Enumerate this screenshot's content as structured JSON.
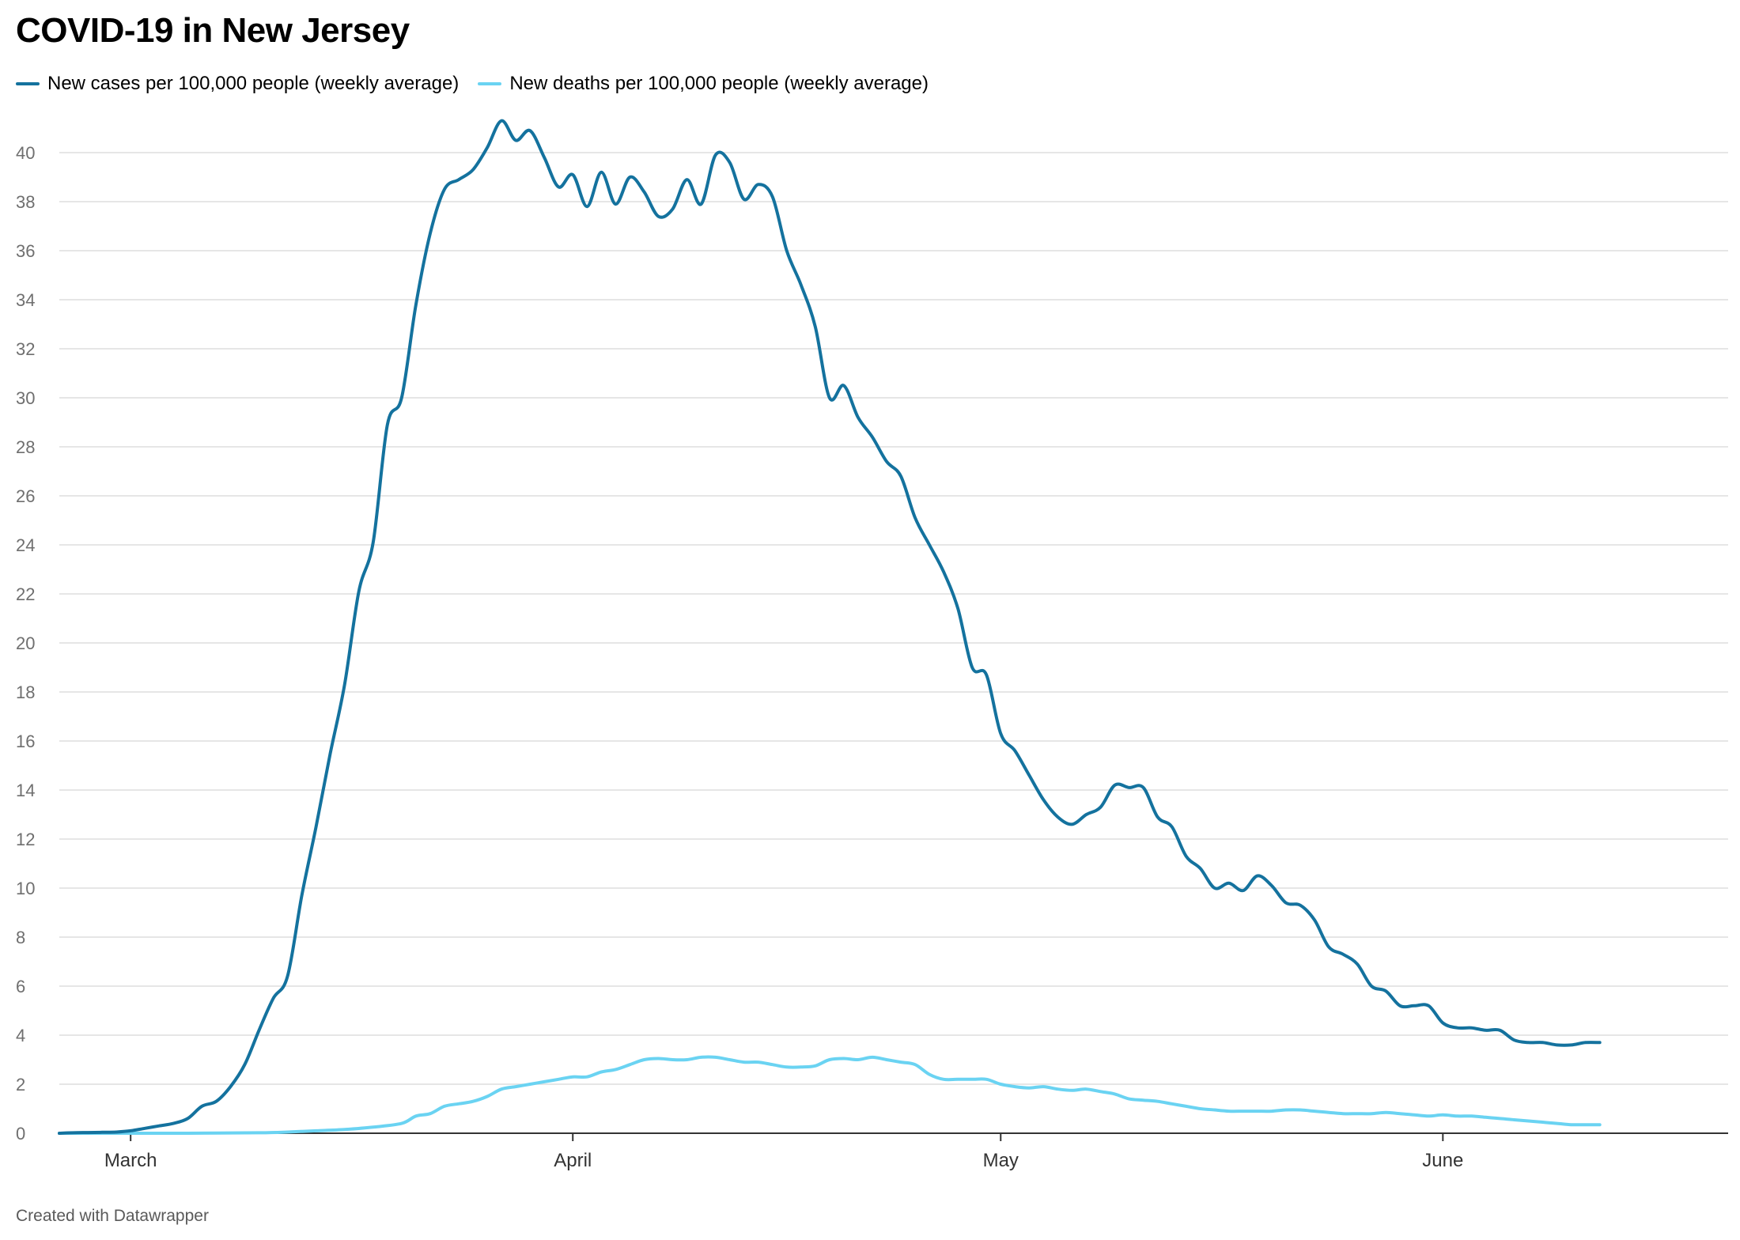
{
  "title": "COVID-19 in New Jersey",
  "footer": "Created with Datawrapper",
  "colors": {
    "cases": "#14729e",
    "deaths": "#6ad3f2",
    "grid": "#dddddd",
    "axis": "#333333"
  },
  "chart_data": {
    "type": "line",
    "title": "COVID-19 in New Jersey",
    "xlabel": "",
    "ylabel": "",
    "ylim": [
      0,
      41
    ],
    "yticks": [
      0,
      2,
      4,
      6,
      8,
      10,
      12,
      14,
      16,
      18,
      20,
      22,
      24,
      26,
      28,
      30,
      32,
      34,
      36,
      38,
      40
    ],
    "x_range": [
      "2020-02-25",
      "2020-06-21"
    ],
    "x_ticks": [
      {
        "date": "2020-03-01",
        "label": "March"
      },
      {
        "date": "2020-04-01",
        "label": "April"
      },
      {
        "date": "2020-05-01",
        "label": "May"
      },
      {
        "date": "2020-06-01",
        "label": "June"
      }
    ],
    "grid": true,
    "legend_position": "top-left",
    "series": [
      {
        "name": "New cases per 100,000 people (weekly average)",
        "color": "#14729e",
        "points": [
          [
            "2020-02-25",
            0
          ],
          [
            "2020-02-26",
            0.02
          ],
          [
            "2020-02-27",
            0.03
          ],
          [
            "2020-02-28",
            0.04
          ],
          [
            "2020-02-29",
            0.05
          ],
          [
            "2020-03-01",
            0.1
          ],
          [
            "2020-03-02",
            0.2
          ],
          [
            "2020-03-03",
            0.3
          ],
          [
            "2020-03-04",
            0.4
          ],
          [
            "2020-03-05",
            0.6
          ],
          [
            "2020-03-06",
            1.1
          ],
          [
            "2020-03-07",
            1.3
          ],
          [
            "2020-03-08",
            1.9
          ],
          [
            "2020-03-09",
            2.8
          ],
          [
            "2020-03-10",
            4.2
          ],
          [
            "2020-03-11",
            5.5
          ],
          [
            "2020-03-12",
            6.4
          ],
          [
            "2020-03-13",
            9.7
          ],
          [
            "2020-03-14",
            12.5
          ],
          [
            "2020-03-15",
            15.5
          ],
          [
            "2020-03-16",
            18.3
          ],
          [
            "2020-03-17",
            22.1
          ],
          [
            "2020-03-18",
            24.1
          ],
          [
            "2020-03-19",
            28.9
          ],
          [
            "2020-03-20",
            30.0
          ],
          [
            "2020-03-21",
            33.8
          ],
          [
            "2020-03-22",
            36.7
          ],
          [
            "2020-03-23",
            38.5
          ],
          [
            "2020-03-24",
            38.9
          ],
          [
            "2020-03-25",
            39.3
          ],
          [
            "2020-03-26",
            40.2
          ],
          [
            "2020-03-27",
            41.3
          ],
          [
            "2020-03-28",
            40.5
          ],
          [
            "2020-03-29",
            40.9
          ],
          [
            "2020-03-30",
            39.8
          ],
          [
            "2020-03-31",
            38.6
          ],
          [
            "2020-04-01",
            39.1
          ],
          [
            "2020-04-02",
            37.8
          ],
          [
            "2020-04-03",
            39.2
          ],
          [
            "2020-04-04",
            37.9
          ],
          [
            "2020-04-05",
            39.0
          ],
          [
            "2020-04-06",
            38.4
          ],
          [
            "2020-04-07",
            37.4
          ],
          [
            "2020-04-08",
            37.7
          ],
          [
            "2020-04-09",
            38.9
          ],
          [
            "2020-04-10",
            37.9
          ],
          [
            "2020-04-11",
            39.9
          ],
          [
            "2020-04-12",
            39.6
          ],
          [
            "2020-04-13",
            38.1
          ],
          [
            "2020-04-14",
            38.7
          ],
          [
            "2020-04-15",
            38.2
          ],
          [
            "2020-04-16",
            36.0
          ],
          [
            "2020-04-17",
            34.6
          ],
          [
            "2020-04-18",
            32.9
          ],
          [
            "2020-04-19",
            30.0
          ],
          [
            "2020-04-20",
            30.5
          ],
          [
            "2020-04-21",
            29.2
          ],
          [
            "2020-04-22",
            28.4
          ],
          [
            "2020-04-23",
            27.4
          ],
          [
            "2020-04-24",
            26.8
          ],
          [
            "2020-04-25",
            25.1
          ],
          [
            "2020-04-26",
            24.0
          ],
          [
            "2020-04-27",
            22.9
          ],
          [
            "2020-04-28",
            21.4
          ],
          [
            "2020-04-29",
            19.0
          ],
          [
            "2020-04-30",
            18.7
          ],
          [
            "2020-05-01",
            16.3
          ],
          [
            "2020-05-02",
            15.6
          ],
          [
            "2020-05-03",
            14.6
          ],
          [
            "2020-05-04",
            13.6
          ],
          [
            "2020-05-05",
            12.9
          ],
          [
            "2020-05-06",
            12.6
          ],
          [
            "2020-05-07",
            13.0
          ],
          [
            "2020-05-08",
            13.3
          ],
          [
            "2020-05-09",
            14.2
          ],
          [
            "2020-05-10",
            14.1
          ],
          [
            "2020-05-11",
            14.1
          ],
          [
            "2020-05-12",
            12.9
          ],
          [
            "2020-05-13",
            12.5
          ],
          [
            "2020-05-14",
            11.3
          ],
          [
            "2020-05-15",
            10.8
          ],
          [
            "2020-05-16",
            10.0
          ],
          [
            "2020-05-17",
            10.2
          ],
          [
            "2020-05-18",
            9.9
          ],
          [
            "2020-05-19",
            10.5
          ],
          [
            "2020-05-20",
            10.1
          ],
          [
            "2020-05-21",
            9.4
          ],
          [
            "2020-05-22",
            9.3
          ],
          [
            "2020-05-23",
            8.7
          ],
          [
            "2020-05-24",
            7.6
          ],
          [
            "2020-05-25",
            7.3
          ],
          [
            "2020-05-26",
            6.9
          ],
          [
            "2020-05-27",
            6.0
          ],
          [
            "2020-05-28",
            5.8
          ],
          [
            "2020-05-29",
            5.2
          ],
          [
            "2020-05-30",
            5.2
          ],
          [
            "2020-05-31",
            5.2
          ],
          [
            "2020-06-01",
            4.5
          ],
          [
            "2020-06-02",
            4.3
          ],
          [
            "2020-06-03",
            4.3
          ],
          [
            "2020-06-04",
            4.2
          ],
          [
            "2020-06-05",
            4.2
          ],
          [
            "2020-06-06",
            3.8
          ],
          [
            "2020-06-07",
            3.7
          ],
          [
            "2020-06-08",
            3.7
          ],
          [
            "2020-06-09",
            3.6
          ],
          [
            "2020-06-10",
            3.6
          ],
          [
            "2020-06-11",
            3.7
          ],
          [
            "2020-06-12",
            3.7
          ]
        ]
      },
      {
        "name": "New deaths per 100,000 people (weekly average)",
        "color": "#6ad3f2",
        "points": [
          [
            "2020-02-25",
            0
          ],
          [
            "2020-03-01",
            0
          ],
          [
            "2020-03-05",
            0
          ],
          [
            "2020-03-10",
            0.02
          ],
          [
            "2020-03-12",
            0.05
          ],
          [
            "2020-03-14",
            0.1
          ],
          [
            "2020-03-16",
            0.15
          ],
          [
            "2020-03-18",
            0.25
          ],
          [
            "2020-03-20",
            0.4
          ],
          [
            "2020-03-21",
            0.7
          ],
          [
            "2020-03-22",
            0.8
          ],
          [
            "2020-03-23",
            1.1
          ],
          [
            "2020-03-24",
            1.2
          ],
          [
            "2020-03-25",
            1.3
          ],
          [
            "2020-03-26",
            1.5
          ],
          [
            "2020-03-27",
            1.8
          ],
          [
            "2020-03-28",
            1.9
          ],
          [
            "2020-03-29",
            2.0
          ],
          [
            "2020-03-30",
            2.1
          ],
          [
            "2020-03-31",
            2.2
          ],
          [
            "2020-04-01",
            2.3
          ],
          [
            "2020-04-02",
            2.3
          ],
          [
            "2020-04-03",
            2.5
          ],
          [
            "2020-04-04",
            2.6
          ],
          [
            "2020-04-05",
            2.8
          ],
          [
            "2020-04-06",
            3.0
          ],
          [
            "2020-04-07",
            3.05
          ],
          [
            "2020-04-08",
            3.0
          ],
          [
            "2020-04-09",
            3.0
          ],
          [
            "2020-04-10",
            3.1
          ],
          [
            "2020-04-11",
            3.1
          ],
          [
            "2020-04-12",
            3.0
          ],
          [
            "2020-04-13",
            2.9
          ],
          [
            "2020-04-14",
            2.9
          ],
          [
            "2020-04-15",
            2.8
          ],
          [
            "2020-04-16",
            2.7
          ],
          [
            "2020-04-17",
            2.7
          ],
          [
            "2020-04-18",
            2.75
          ],
          [
            "2020-04-19",
            3.0
          ],
          [
            "2020-04-20",
            3.05
          ],
          [
            "2020-04-21",
            3.0
          ],
          [
            "2020-04-22",
            3.1
          ],
          [
            "2020-04-23",
            3.0
          ],
          [
            "2020-04-24",
            2.9
          ],
          [
            "2020-04-25",
            2.8
          ],
          [
            "2020-04-26",
            2.4
          ],
          [
            "2020-04-27",
            2.2
          ],
          [
            "2020-04-28",
            2.2
          ],
          [
            "2020-04-29",
            2.2
          ],
          [
            "2020-04-30",
            2.2
          ],
          [
            "2020-05-01",
            2.0
          ],
          [
            "2020-05-02",
            1.9
          ],
          [
            "2020-05-03",
            1.85
          ],
          [
            "2020-05-04",
            1.9
          ],
          [
            "2020-05-05",
            1.8
          ],
          [
            "2020-05-06",
            1.75
          ],
          [
            "2020-05-07",
            1.8
          ],
          [
            "2020-05-08",
            1.7
          ],
          [
            "2020-05-09",
            1.6
          ],
          [
            "2020-05-10",
            1.4
          ],
          [
            "2020-05-11",
            1.35
          ],
          [
            "2020-05-12",
            1.3
          ],
          [
            "2020-05-13",
            1.2
          ],
          [
            "2020-05-14",
            1.1
          ],
          [
            "2020-05-15",
            1.0
          ],
          [
            "2020-05-16",
            0.95
          ],
          [
            "2020-05-17",
            0.9
          ],
          [
            "2020-05-18",
            0.9
          ],
          [
            "2020-05-19",
            0.9
          ],
          [
            "2020-05-20",
            0.9
          ],
          [
            "2020-05-21",
            0.95
          ],
          [
            "2020-05-22",
            0.95
          ],
          [
            "2020-05-23",
            0.9
          ],
          [
            "2020-05-24",
            0.85
          ],
          [
            "2020-05-25",
            0.8
          ],
          [
            "2020-05-26",
            0.8
          ],
          [
            "2020-05-27",
            0.8
          ],
          [
            "2020-05-28",
            0.85
          ],
          [
            "2020-05-29",
            0.8
          ],
          [
            "2020-05-30",
            0.75
          ],
          [
            "2020-05-31",
            0.7
          ],
          [
            "2020-06-01",
            0.75
          ],
          [
            "2020-06-02",
            0.7
          ],
          [
            "2020-06-03",
            0.7
          ],
          [
            "2020-06-04",
            0.65
          ],
          [
            "2020-06-05",
            0.6
          ],
          [
            "2020-06-06",
            0.55
          ],
          [
            "2020-06-07",
            0.5
          ],
          [
            "2020-06-08",
            0.45
          ],
          [
            "2020-06-09",
            0.4
          ],
          [
            "2020-06-10",
            0.35
          ],
          [
            "2020-06-11",
            0.35
          ],
          [
            "2020-06-12",
            0.35
          ]
        ]
      }
    ]
  }
}
